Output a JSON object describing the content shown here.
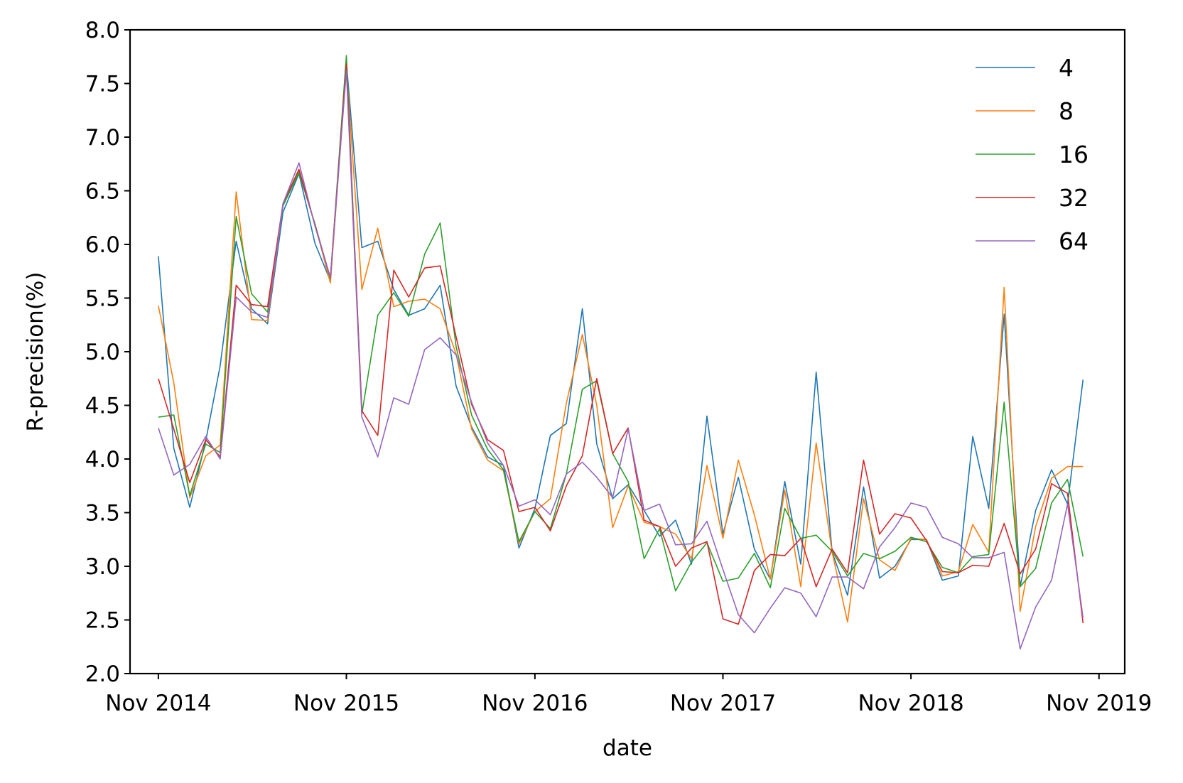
{
  "chart_data": {
    "type": "line",
    "title": "",
    "xlabel": "date",
    "ylabel": "R-precision(%)",
    "ylim": [
      2.0,
      8.0
    ],
    "xlim": [
      "2014-09-07",
      "2019-12-21"
    ],
    "yticks": [
      "2.0",
      "2.5",
      "3.0",
      "3.5",
      "4.0",
      "4.5",
      "5.0",
      "5.5",
      "6.0",
      "6.5",
      "7.0",
      "7.5",
      "8.0"
    ],
    "xticks": [
      {
        "date": "2014-11-01",
        "label": "Nov 2014"
      },
      {
        "date": "2015-11-01",
        "label": "Nov 2015"
      },
      {
        "date": "2016-11-01",
        "label": "Nov 2016"
      },
      {
        "date": "2017-11-01",
        "label": "Nov 2017"
      },
      {
        "date": "2018-11-01",
        "label": "Nov 2018"
      },
      {
        "date": "2019-11-01",
        "label": "Nov 2019"
      }
    ],
    "grid": false,
    "legend_position": "top-right",
    "x": [
      "2014-11-01",
      "2014-12-01",
      "2015-01-01",
      "2015-02-01",
      "2015-03-01",
      "2015-04-01",
      "2015-05-01",
      "2015-06-01",
      "2015-07-01",
      "2015-08-01",
      "2015-09-01",
      "2015-10-01",
      "2015-11-01",
      "2015-12-01",
      "2016-01-01",
      "2016-02-01",
      "2016-03-01",
      "2016-04-01",
      "2016-05-01",
      "2016-06-01",
      "2016-07-01",
      "2016-08-01",
      "2016-09-01",
      "2016-10-01",
      "2016-11-01",
      "2016-12-01",
      "2017-01-01",
      "2017-02-01",
      "2017-03-01",
      "2017-04-01",
      "2017-05-01",
      "2017-06-01",
      "2017-07-01",
      "2017-08-01",
      "2017-09-01",
      "2017-10-01",
      "2017-11-01",
      "2017-12-01",
      "2018-01-01",
      "2018-02-01",
      "2018-03-01",
      "2018-04-01",
      "2018-05-01",
      "2018-06-01",
      "2018-07-01",
      "2018-08-01",
      "2018-09-01",
      "2018-10-01",
      "2018-11-01",
      "2018-12-01",
      "2019-01-01",
      "2019-02-01",
      "2019-03-01",
      "2019-04-01",
      "2019-05-01",
      "2019-06-01",
      "2019-07-01",
      "2019-08-01",
      "2019-09-01",
      "2019-10-01"
    ],
    "series": [
      {
        "name": "4",
        "color": "#1f77b4",
        "values": [
          5.89,
          4.1,
          3.55,
          4.17,
          4.87,
          6.03,
          5.4,
          5.26,
          6.3,
          6.66,
          6.01,
          5.66,
          7.7,
          5.97,
          6.03,
          5.58,
          5.34,
          5.4,
          5.62,
          4.68,
          4.3,
          4.02,
          3.94,
          3.17,
          3.54,
          4.22,
          4.33,
          5.4,
          4.14,
          3.63,
          3.76,
          3.52,
          3.28,
          3.43,
          3.02,
          4.4,
          3.3,
          3.83,
          3.16,
          2.88,
          3.79,
          3.02,
          4.81,
          3.13,
          2.73,
          3.74,
          2.89,
          3.0,
          3.25,
          3.25,
          2.87,
          2.91,
          4.21,
          3.54,
          5.35,
          2.81,
          3.52,
          3.9,
          3.58,
          4.74
        ]
      },
      {
        "name": "8",
        "color": "#ff7f0e",
        "values": [
          5.43,
          4.71,
          3.64,
          4.03,
          4.13,
          6.49,
          5.3,
          5.29,
          6.37,
          6.68,
          6.19,
          5.64,
          7.66,
          5.58,
          6.15,
          5.42,
          5.47,
          5.49,
          5.4,
          4.98,
          4.28,
          3.99,
          3.89,
          3.21,
          3.51,
          3.63,
          4.52,
          5.16,
          4.5,
          3.36,
          3.75,
          3.41,
          3.37,
          3.3,
          3.07,
          3.94,
          3.26,
          3.99,
          3.48,
          2.88,
          3.71,
          2.81,
          4.15,
          3.13,
          2.48,
          3.63,
          3.06,
          2.96,
          3.26,
          3.25,
          2.91,
          2.95,
          3.39,
          3.13,
          5.6,
          2.58,
          3.37,
          3.82,
          3.93,
          3.93
        ]
      },
      {
        "name": "16",
        "color": "#2ca02c",
        "values": [
          4.39,
          4.41,
          3.66,
          4.14,
          4.06,
          6.26,
          5.54,
          5.37,
          6.36,
          6.67,
          6.19,
          5.68,
          7.76,
          4.42,
          5.34,
          5.55,
          5.33,
          5.91,
          6.2,
          5.05,
          4.41,
          4.09,
          3.9,
          3.23,
          3.51,
          3.35,
          3.86,
          4.65,
          4.73,
          4.05,
          3.79,
          3.07,
          3.35,
          2.77,
          3.04,
          3.22,
          2.86,
          2.89,
          3.12,
          2.8,
          3.54,
          3.26,
          3.29,
          3.14,
          2.91,
          3.12,
          3.07,
          3.14,
          3.27,
          3.23,
          2.99,
          2.94,
          3.09,
          3.11,
          4.53,
          2.81,
          2.98,
          3.59,
          3.81,
          3.09
        ]
      },
      {
        "name": "32",
        "color": "#d62728",
        "values": [
          4.75,
          4.28,
          3.78,
          4.18,
          4.02,
          5.62,
          5.44,
          5.42,
          6.38,
          6.7,
          6.18,
          5.69,
          7.68,
          4.45,
          4.22,
          5.76,
          5.51,
          5.78,
          5.8,
          5.14,
          4.51,
          4.18,
          4.08,
          3.51,
          3.55,
          3.33,
          3.75,
          4.03,
          4.75,
          4.05,
          4.29,
          3.43,
          3.37,
          3.0,
          3.17,
          3.23,
          2.51,
          2.46,
          2.96,
          3.11,
          3.1,
          3.26,
          2.81,
          3.16,
          2.94,
          3.99,
          3.3,
          3.49,
          3.45,
          3.24,
          2.95,
          2.94,
          3.01,
          3.0,
          3.4,
          2.93,
          3.16,
          3.77,
          3.68,
          2.47
        ]
      },
      {
        "name": "64",
        "color": "#9467bd",
        "values": [
          4.29,
          3.85,
          3.95,
          4.21,
          4.0,
          5.51,
          5.37,
          5.32,
          6.38,
          6.76,
          6.17,
          5.69,
          7.62,
          4.39,
          4.02,
          4.57,
          4.51,
          5.02,
          5.13,
          4.97,
          4.53,
          4.15,
          3.94,
          3.56,
          3.62,
          3.48,
          3.86,
          3.97,
          3.83,
          3.64,
          4.28,
          3.52,
          3.58,
          3.2,
          3.21,
          3.42,
          2.97,
          2.55,
          2.38,
          2.61,
          2.8,
          2.75,
          2.53,
          2.9,
          2.9,
          2.79,
          3.18,
          3.36,
          3.59,
          3.55,
          3.27,
          3.21,
          3.08,
          3.08,
          3.13,
          2.23,
          2.62,
          2.87,
          3.58,
          2.52
        ]
      }
    ]
  }
}
